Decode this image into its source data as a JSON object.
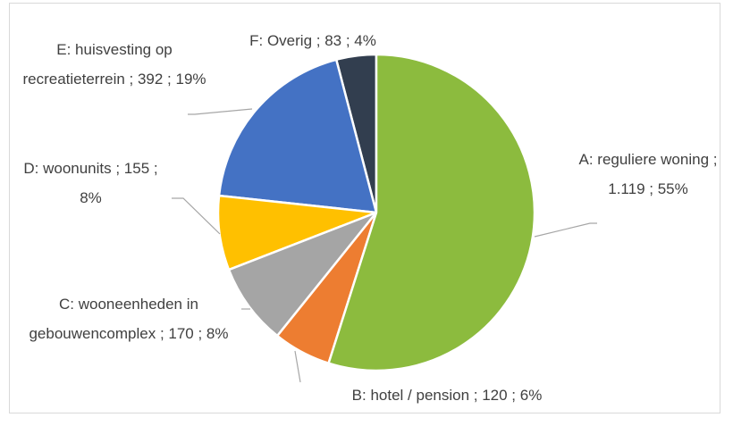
{
  "chart_data": {
    "type": "pie",
    "categories": [
      "A: reguliere woning ; 1.119 ; 55%",
      "B: hotel / pension ; 120 ; 6%",
      "C: wooneenheden in gebouwencomplex ; 170 ; 8%",
      "D: woonunits ; 155 ; 8%",
      "E: huisvesting op recreatieterrein ; 392 ; 19%",
      "F: Overig ; 83 ; 4%"
    ],
    "values": [
      1119,
      120,
      170,
      155,
      392,
      83
    ],
    "colors": [
      "#8cbb3e",
      "#ed7d31",
      "#a5a5a5",
      "#ffc000",
      "#4472c4",
      "#323e4f"
    ]
  }
}
